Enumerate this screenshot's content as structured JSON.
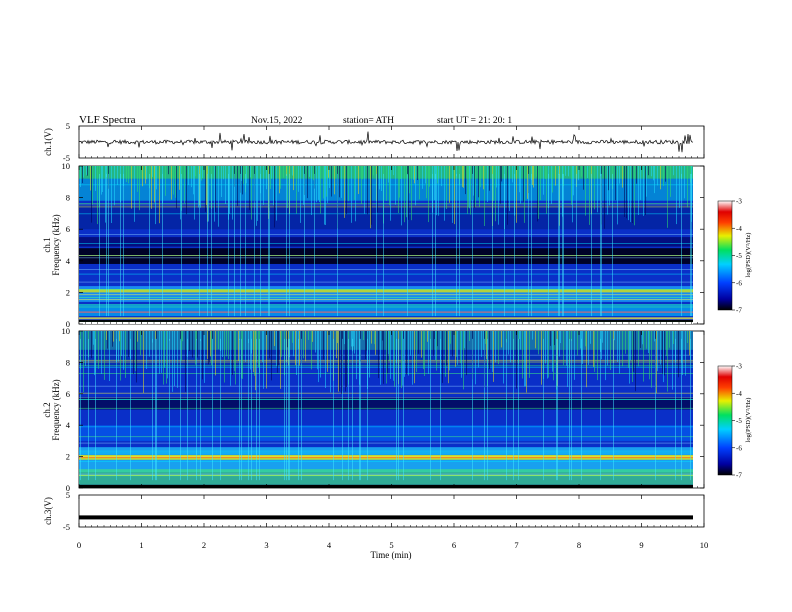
{
  "header": {
    "title": "VLF  Spectra",
    "date": "Nov.15, 2022",
    "station": "station= ATH",
    "start": "start  UT  =   21: 20: 1"
  },
  "chart_data": [
    {
      "type": "line",
      "name": "ch1-waveform",
      "ylabel": "ch.1(V)",
      "ylim": [
        -5,
        5
      ],
      "yticks": [
        "5",
        "-5"
      ],
      "baseline": 0,
      "color": "#000000"
    },
    {
      "type": "heatmap",
      "name": "ch1-spectrogram",
      "ylabel": "Frequency  (kHz)",
      "ylabel2": "ch.1",
      "ylim": [
        0,
        10
      ],
      "yticks": [
        "0",
        "2",
        "4",
        "6",
        "8",
        "10"
      ],
      "colorbar": {
        "label": "log(PSD)(V²/Hz)",
        "range": [
          -7,
          -3
        ],
        "ticks": [
          "-3",
          "-4",
          "-5",
          "-6",
          "-7"
        ]
      }
    },
    {
      "type": "heatmap",
      "name": "ch2-spectrogram",
      "ylabel": "Frequency  (kHz)",
      "ylabel2": "ch.2",
      "ylim": [
        0,
        10
      ],
      "yticks": [
        "0",
        "2",
        "4",
        "6",
        "8",
        "10"
      ],
      "colorbar": {
        "label": "log(PSD)(V²/Hz)",
        "range": [
          -7,
          -3
        ],
        "ticks": [
          "-3",
          "-4",
          "-5",
          "-6",
          "-7"
        ]
      }
    },
    {
      "type": "line",
      "name": "ch3-waveform",
      "ylabel": "ch.3(V)",
      "ylim": [
        -5,
        5
      ],
      "yticks": [
        "5",
        "-5"
      ],
      "level": -2,
      "color": "#000000"
    }
  ],
  "xaxis": {
    "label": "Time  (min)",
    "range": [
      0,
      10
    ],
    "ticks": [
      "0",
      "1",
      "2",
      "3",
      "4",
      "5",
      "6",
      "7",
      "8",
      "9",
      "10"
    ]
  }
}
